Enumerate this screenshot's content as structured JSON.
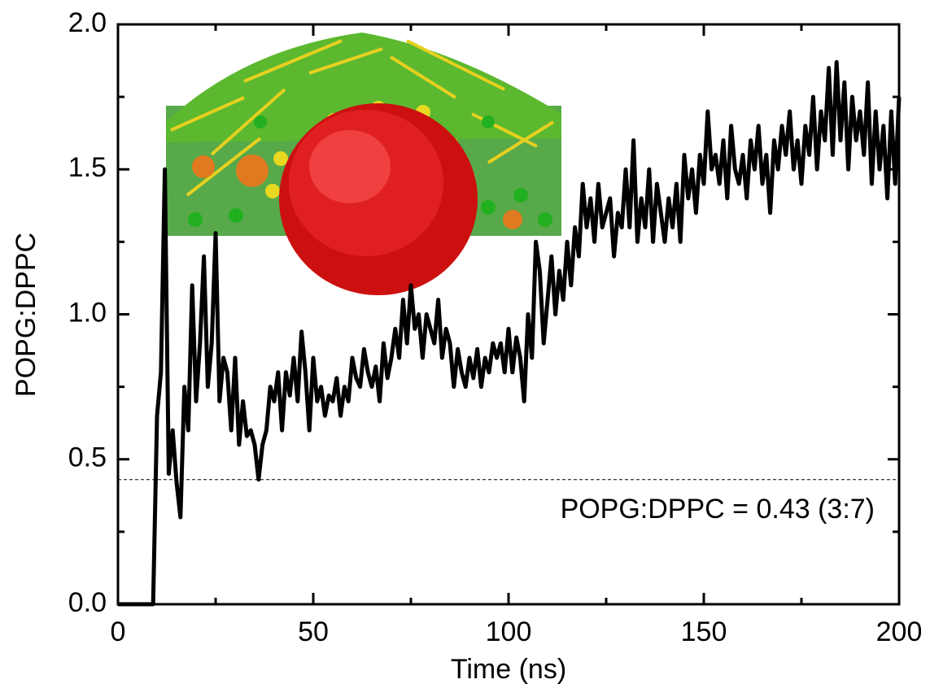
{
  "chart_data": {
    "type": "line",
    "xlabel": "Time (ns)",
    "ylabel": "POPG:DPPC",
    "annotation": "POPG:DPPC = 0.43 (3:7)",
    "reference_y": 0.43,
    "xlim": [
      0,
      200
    ],
    "xticks": [
      0,
      50,
      100,
      150,
      200
    ],
    "xminorticks": [
      25,
      75,
      125,
      175
    ],
    "ylim": [
      0,
      2
    ],
    "yticks": [
      {
        "value": 0,
        "label": "0.0"
      },
      {
        "value": 0.5,
        "label": "0.5"
      },
      {
        "value": 1,
        "label": "1.0"
      },
      {
        "value": 1.5,
        "label": "1.5"
      },
      {
        "value": 2,
        "label": "2.0"
      }
    ],
    "yminorticks": [
      0.25,
      0.75,
      1.25,
      1.75
    ],
    "series": [
      {
        "color": "#000000",
        "x": [
          0,
          1,
          2,
          3,
          4,
          5,
          6,
          7,
          8,
          9,
          10,
          11,
          12,
          13,
          14,
          15,
          16,
          17,
          18,
          19,
          20,
          21,
          22,
          23,
          24,
          25,
          26,
          27,
          28,
          29,
          30,
          31,
          32,
          33,
          34,
          35,
          36,
          37,
          38,
          39,
          40,
          41,
          42,
          43,
          44,
          45,
          46,
          47,
          48,
          49,
          50,
          51,
          52,
          53,
          54,
          55,
          56,
          57,
          58,
          59,
          60,
          61,
          62,
          63,
          64,
          65,
          66,
          67,
          68,
          69,
          70,
          71,
          72,
          73,
          74,
          75,
          76,
          77,
          78,
          79,
          80,
          81,
          82,
          83,
          84,
          85,
          86,
          87,
          88,
          89,
          90,
          91,
          92,
          93,
          94,
          95,
          96,
          97,
          98,
          99,
          100,
          101,
          102,
          103,
          104,
          105,
          106,
          107,
          108,
          109,
          110,
          111,
          112,
          113,
          114,
          115,
          116,
          117,
          118,
          119,
          120,
          121,
          122,
          123,
          124,
          125,
          126,
          127,
          128,
          129,
          130,
          131,
          132,
          133,
          134,
          135,
          136,
          137,
          138,
          139,
          140,
          141,
          142,
          143,
          144,
          145,
          146,
          147,
          148,
          149,
          150,
          151,
          152,
          153,
          154,
          155,
          156,
          157,
          158,
          159,
          160,
          161,
          162,
          163,
          164,
          165,
          166,
          167,
          168,
          169,
          170,
          171,
          172,
          173,
          174,
          175,
          176,
          177,
          178,
          179,
          180,
          181,
          182,
          183,
          184,
          185,
          186,
          187,
          188,
          189,
          190,
          191,
          192,
          193,
          194,
          195,
          196,
          197,
          198,
          199,
          200
        ],
        "values": [
          0,
          0,
          0,
          0,
          0,
          0,
          0,
          0,
          0,
          0,
          0.65,
          0.8,
          1.5,
          0.45,
          0.6,
          0.42,
          0.3,
          0.75,
          0.6,
          1.1,
          0.7,
          0.9,
          1.2,
          0.75,
          0.9,
          1.28,
          0.7,
          0.85,
          0.8,
          0.6,
          0.85,
          0.55,
          0.7,
          0.58,
          0.6,
          0.55,
          0.43,
          0.55,
          0.6,
          0.75,
          0.7,
          0.8,
          0.6,
          0.8,
          0.72,
          0.85,
          0.7,
          0.94,
          0.8,
          0.6,
          0.85,
          0.7,
          0.75,
          0.65,
          0.72,
          0.7,
          0.78,
          0.65,
          0.75,
          0.7,
          0.85,
          0.78,
          0.75,
          0.88,
          0.8,
          0.75,
          0.82,
          0.7,
          0.9,
          0.78,
          0.85,
          0.95,
          0.85,
          1.05,
          0.9,
          1.1,
          0.95,
          1.0,
          0.85,
          1.0,
          0.95,
          0.9,
          1.05,
          0.85,
          0.95,
          0.9,
          0.75,
          0.88,
          0.8,
          0.75,
          0.85,
          0.78,
          0.88,
          0.75,
          0.85,
          0.8,
          0.9,
          0.85,
          0.9,
          0.8,
          0.95,
          0.8,
          0.92,
          0.85,
          0.7,
          1.0,
          0.85,
          1.25,
          1.15,
          0.9,
          1.05,
          1.2,
          1.0,
          1.15,
          1.05,
          1.25,
          1.1,
          1.3,
          1.2,
          1.45,
          1.3,
          1.4,
          1.25,
          1.45,
          1.3,
          1.35,
          1.4,
          1.2,
          1.35,
          1.3,
          1.5,
          1.3,
          1.6,
          1.25,
          1.4,
          1.3,
          1.5,
          1.25,
          1.45,
          1.35,
          1.25,
          1.4,
          1.3,
          1.45,
          1.25,
          1.55,
          1.4,
          1.5,
          1.35,
          1.55,
          1.45,
          1.7,
          1.5,
          1.55,
          1.45,
          1.6,
          1.4,
          1.65,
          1.5,
          1.45,
          1.55,
          1.4,
          1.6,
          1.5,
          1.65,
          1.45,
          1.55,
          1.35,
          1.6,
          1.5,
          1.65,
          1.55,
          1.7,
          1.5,
          1.6,
          1.45,
          1.65,
          1.55,
          1.75,
          1.5,
          1.7,
          1.6,
          1.85,
          1.55,
          1.87,
          1.6,
          1.8,
          1.5,
          1.75,
          1.6,
          1.7,
          1.55,
          1.8,
          1.45,
          1.7,
          1.5,
          1.65,
          1.4,
          1.7,
          1.45,
          1.75
        ]
      }
    ]
  }
}
